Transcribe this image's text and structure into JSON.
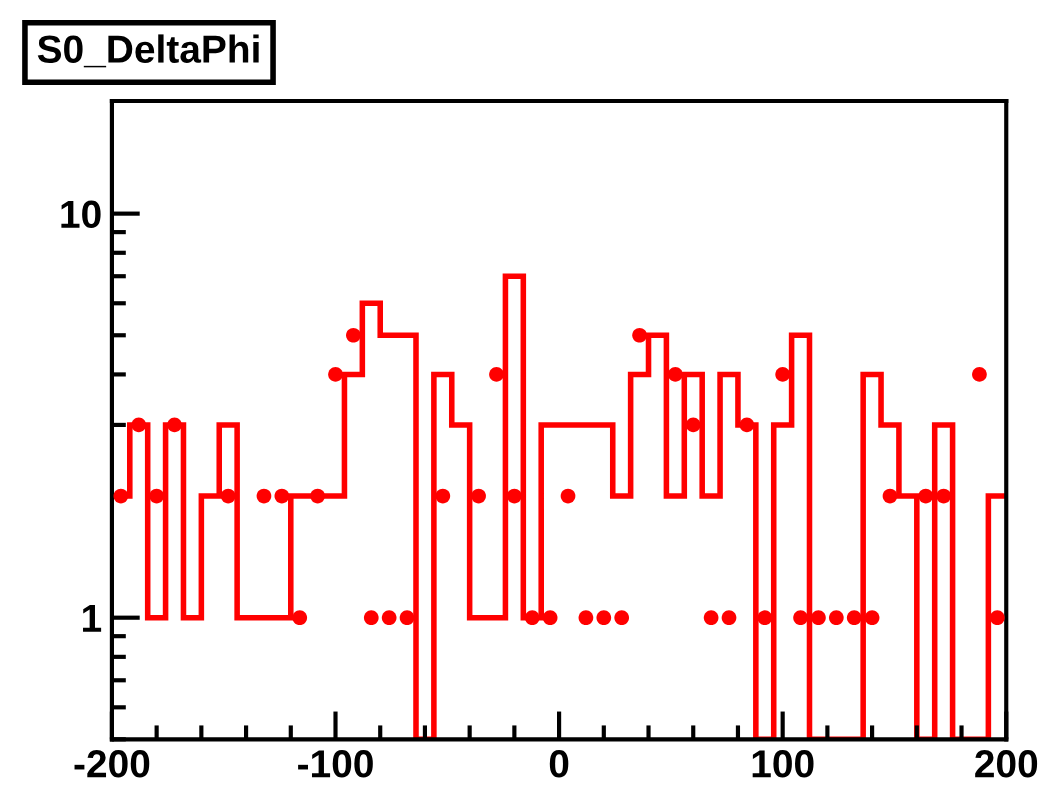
{
  "chart_data": {
    "type": "histogram",
    "title": "S0_DeltaPhi",
    "log": "y",
    "xlim": [
      -200,
      200
    ],
    "xticks": [
      -200,
      -100,
      0,
      100,
      200
    ],
    "ylim": [
      0.5,
      19
    ],
    "yticks": [
      1,
      10
    ],
    "grid": false,
    "legend": false,
    "color": "#ff0000",
    "bins": [
      -200,
      -192,
      -184,
      -176,
      -168,
      -160,
      -152,
      -144,
      -136,
      -128,
      -120,
      -112,
      -104,
      -96,
      -88,
      -80,
      -72,
      -64,
      -56,
      -48,
      -40,
      -32,
      -24,
      -16,
      -8,
      0,
      8,
      16,
      24,
      32,
      40,
      48,
      56,
      64,
      72,
      80,
      88,
      96,
      104,
      112,
      120,
      128,
      136,
      144,
      152,
      160,
      168,
      176,
      184,
      192,
      200
    ],
    "values": [
      2,
      3,
      1,
      3,
      1,
      2,
      3,
      1,
      1,
      1,
      2,
      2,
      2,
      4,
      6,
      5,
      5,
      null,
      4,
      3,
      1,
      1,
      7,
      1,
      3,
      3,
      3,
      3,
      2,
      4,
      5,
      2,
      4,
      2,
      4,
      3,
      null,
      3,
      5,
      null,
      null,
      null,
      4,
      3,
      2,
      null,
      3,
      null,
      null,
      2
    ],
    "series": [
      {
        "type": "scatter",
        "color": "#ff0000",
        "marker": "circle",
        "x": [
          -196,
          -188,
          -180,
          -172,
          -148,
          -132,
          -124,
          -116,
          -108,
          -100,
          -92,
          -84,
          -76,
          -68,
          -52,
          -36,
          -28,
          -20,
          -12,
          -4,
          4,
          12,
          20,
          28,
          36,
          52,
          60,
          68,
          76,
          84,
          92,
          100,
          108,
          116,
          124,
          132,
          140,
          148,
          164,
          172,
          188,
          196
        ],
        "values": [
          2,
          3,
          2,
          3,
          2,
          2,
          2,
          1,
          2,
          4,
          5,
          1,
          1,
          1,
          2,
          2,
          4,
          2,
          1,
          1,
          2,
          1,
          1,
          1,
          5,
          4,
          3,
          1,
          1,
          3,
          1,
          4,
          1,
          1,
          1,
          1,
          1,
          2,
          2,
          2,
          4,
          1
        ]
      }
    ]
  }
}
